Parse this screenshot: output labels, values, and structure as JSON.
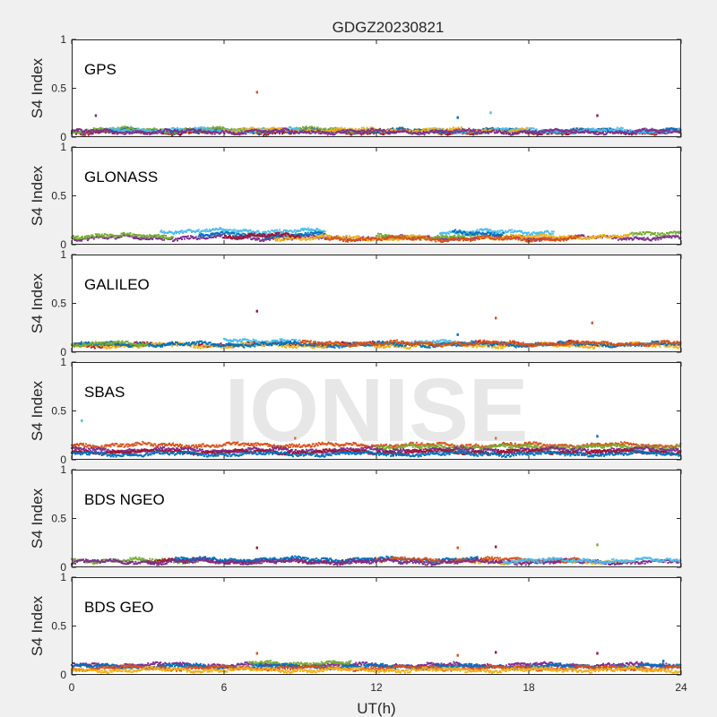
{
  "figure": {
    "title": "GDGZ20230821",
    "watermark": "IONISE",
    "background": "#f0f0f0",
    "axes_background": "#ffffff",
    "axes_color": "#262626"
  },
  "palette": {
    "blue": "#0072BD",
    "orange": "#D95319",
    "yellow": "#EDB120",
    "purple": "#7E2F8E",
    "green": "#77AC30",
    "cyan": "#4DBEEE",
    "red": "#A2142F"
  },
  "chart_data": [
    {
      "type": "scatter",
      "label": "GPS",
      "ylabel": "S4 Index",
      "xlabel": "",
      "xlim": [
        0,
        24
      ],
      "ylim": [
        0,
        1
      ],
      "yticks": [
        "0",
        "0.5",
        "1"
      ],
      "xticks": [
        0,
        6,
        12,
        18,
        24
      ],
      "xtick_labels_shown": false,
      "series": [
        {
          "color": "#A2142F",
          "segments": [
            [
              0,
              24,
              0.05
            ]
          ]
        },
        {
          "color": "#D95319",
          "segments": [
            [
              0,
              24,
              0.06
            ]
          ]
        },
        {
          "color": "#0072BD",
          "segments": [
            [
              0,
              24,
              0.065
            ]
          ]
        },
        {
          "color": "#77AC30",
          "segments": [
            [
              0,
              12,
              0.075
            ]
          ]
        },
        {
          "color": "#4DBEEE",
          "segments": [
            [
              1.5,
              9,
              0.07
            ],
            [
              14,
              24,
              0.065
            ]
          ]
        },
        {
          "color": "#EDB120",
          "segments": [
            [
              6,
              18,
              0.07
            ]
          ]
        },
        {
          "color": "#7E2F8E",
          "segments": [
            [
              0,
              24,
              0.055
            ]
          ]
        }
      ],
      "outliers": [
        {
          "x": 7.3,
          "y": 0.46,
          "color": "#D95319"
        },
        {
          "x": 0.95,
          "y": 0.22,
          "color": "#7E2F8E"
        },
        {
          "x": 15.2,
          "y": 0.2,
          "color": "#0072BD"
        },
        {
          "x": 16.5,
          "y": 0.25,
          "color": "#4DBEEE"
        },
        {
          "x": 20.7,
          "y": 0.22,
          "color": "#A2142F"
        }
      ]
    },
    {
      "type": "scatter",
      "label": "GLONASS",
      "ylabel": "S4 Index",
      "xlabel": "",
      "xlim": [
        0,
        24
      ],
      "ylim": [
        0,
        1
      ],
      "yticks": [
        "0",
        "0.5",
        "1"
      ],
      "xticks": [
        0,
        6,
        12,
        18,
        24
      ],
      "xtick_labels_shown": false,
      "series": [
        {
          "color": "#7E2F8E",
          "segments": [
            [
              0,
              24,
              0.07
            ]
          ]
        },
        {
          "color": "#77AC30",
          "segments": [
            [
              0,
              4,
              0.09
            ],
            [
              12,
              16,
              0.08
            ],
            [
              22,
              24,
              0.12
            ]
          ]
        },
        {
          "color": "#4DBEEE",
          "segments": [
            [
              3.5,
              10,
              0.14
            ],
            [
              14.5,
              19,
              0.13
            ]
          ]
        },
        {
          "color": "#0072BD",
          "segments": [
            [
              5,
              10,
              0.1
            ],
            [
              15,
              17,
              0.12
            ]
          ]
        },
        {
          "color": "#EDB120",
          "segments": [
            [
              8,
              14,
              0.07
            ],
            [
              16,
              22,
              0.08
            ]
          ]
        },
        {
          "color": "#D95319",
          "segments": [
            [
              10,
              20,
              0.06
            ]
          ]
        },
        {
          "color": "#A2142F",
          "segments": [
            [
              6,
              9,
              0.09
            ]
          ]
        }
      ],
      "outliers": []
    },
    {
      "type": "scatter",
      "label": "GALILEO",
      "ylabel": "S4 Index",
      "xlabel": "",
      "xlim": [
        0,
        24
      ],
      "ylim": [
        0,
        1
      ],
      "yticks": [
        "0",
        "0.5",
        "1"
      ],
      "xticks": [
        0,
        6,
        12,
        18,
        24
      ],
      "xtick_labels_shown": false,
      "series": [
        {
          "color": "#A2142F",
          "segments": [
            [
              0,
              4,
              0.075
            ],
            [
              5,
              12,
              0.08
            ],
            [
              15,
              20,
              0.09
            ]
          ]
        },
        {
          "color": "#4DBEEE",
          "segments": [
            [
              6,
              9,
              0.12
            ],
            [
              12,
              16,
              0.1
            ]
          ]
        },
        {
          "color": "#EDB120",
          "segments": [
            [
              0,
              24,
              0.07
            ]
          ]
        },
        {
          "color": "#0072BD",
          "segments": [
            [
              0,
              24,
              0.08
            ]
          ]
        },
        {
          "color": "#D95319",
          "segments": [
            [
              9,
              24,
              0.09
            ]
          ]
        },
        {
          "color": "#77AC30",
          "segments": [
            [
              0,
              3,
              0.085
            ]
          ]
        }
      ],
      "outliers": [
        {
          "x": 7.3,
          "y": 0.42,
          "color": "#A2142F"
        },
        {
          "x": 16.7,
          "y": 0.35,
          "color": "#D95319"
        },
        {
          "x": 20.5,
          "y": 0.3,
          "color": "#D95319"
        },
        {
          "x": 15.2,
          "y": 0.18,
          "color": "#0072BD"
        }
      ]
    },
    {
      "type": "scatter",
      "label": "SBAS",
      "ylabel": "S4 Index",
      "xlabel": "",
      "xlim": [
        0,
        24
      ],
      "ylim": [
        0,
        1
      ],
      "yticks": [
        "0",
        "0.5",
        "1"
      ],
      "xticks": [
        0,
        6,
        12,
        18,
        24
      ],
      "xtick_labels_shown": false,
      "series": [
        {
          "color": "#D95319",
          "segments": [
            [
              0,
              24,
              0.15
            ]
          ]
        },
        {
          "color": "#77AC30",
          "segments": [
            [
              12,
              24,
              0.13
            ]
          ]
        },
        {
          "color": "#7E2F8E",
          "segments": [
            [
              0,
              24,
              0.1
            ]
          ]
        },
        {
          "color": "#A2142F",
          "segments": [
            [
              0,
              24,
              0.08
            ]
          ]
        },
        {
          "color": "#0072BD",
          "segments": [
            [
              0,
              24,
              0.06
            ]
          ]
        }
      ],
      "outliers": [
        {
          "x": 0.4,
          "y": 0.4,
          "color": "#4DBEEE"
        },
        {
          "x": 8.8,
          "y": 0.22,
          "color": "#D95319"
        },
        {
          "x": 16.7,
          "y": 0.22,
          "color": "#D95319"
        },
        {
          "x": 20.7,
          "y": 0.24,
          "color": "#0072BD"
        }
      ]
    },
    {
      "type": "scatter",
      "label": "BDS NGEO",
      "ylabel": "S4 Index",
      "xlabel": "",
      "xlim": [
        0,
        24
      ],
      "ylim": [
        0,
        1
      ],
      "yticks": [
        "0",
        "0.5",
        "1"
      ],
      "xticks": [
        0,
        6,
        12,
        18,
        24
      ],
      "xtick_labels_shown": false,
      "series": [
        {
          "color": "#77AC30",
          "segments": [
            [
              0,
              5,
              0.07
            ]
          ]
        },
        {
          "color": "#A2142F",
          "segments": [
            [
              3,
              12,
              0.065
            ]
          ]
        },
        {
          "color": "#EDB120",
          "segments": [
            [
              15,
              22,
              0.06
            ]
          ]
        },
        {
          "color": "#0072BD",
          "segments": [
            [
              4,
              16,
              0.08
            ]
          ]
        },
        {
          "color": "#D95319",
          "segments": [
            [
              12,
              20,
              0.075
            ]
          ]
        },
        {
          "color": "#7E2F8E",
          "segments": [
            [
              0,
              24,
              0.055
            ]
          ]
        },
        {
          "color": "#4DBEEE",
          "segments": [
            [
              17,
              24,
              0.07
            ]
          ]
        }
      ],
      "outliers": [
        {
          "x": 7.3,
          "y": 0.2,
          "color": "#A2142F"
        },
        {
          "x": 15.2,
          "y": 0.2,
          "color": "#D95319"
        },
        {
          "x": 16.7,
          "y": 0.21,
          "color": "#A2142F"
        },
        {
          "x": 20.7,
          "y": 0.23,
          "color": "#77AC30"
        }
      ]
    },
    {
      "type": "scatter",
      "label": "BDS GEO",
      "ylabel": "S4 Index",
      "xlabel": "UT(h)",
      "xlim": [
        0,
        24
      ],
      "ylim": [
        0,
        1
      ],
      "yticks": [
        "0",
        "0.5",
        "1"
      ],
      "xticks": [
        0,
        6,
        12,
        18,
        24
      ],
      "xtick_labels_shown": true,
      "series": [
        {
          "color": "#7E2F8E",
          "segments": [
            [
              0,
              24,
              0.1
            ]
          ]
        },
        {
          "color": "#77AC30",
          "segments": [
            [
              7,
              11,
              0.12
            ]
          ]
        },
        {
          "color": "#0072BD",
          "segments": [
            [
              0,
              24,
              0.085
            ]
          ]
        },
        {
          "color": "#D95319",
          "segments": [
            [
              0,
              24,
              0.07
            ]
          ]
        },
        {
          "color": "#EDB120",
          "segments": [
            [
              0,
              24,
              0.05
            ]
          ]
        }
      ],
      "outliers": [
        {
          "x": 7.3,
          "y": 0.22,
          "color": "#D95319"
        },
        {
          "x": 15.2,
          "y": 0.2,
          "color": "#D95319"
        },
        {
          "x": 16.7,
          "y": 0.23,
          "color": "#A2142F"
        },
        {
          "x": 20.7,
          "y": 0.22,
          "color": "#A2142F"
        },
        {
          "x": 23.3,
          "y": 0.14,
          "color": "#0072BD"
        }
      ]
    }
  ]
}
